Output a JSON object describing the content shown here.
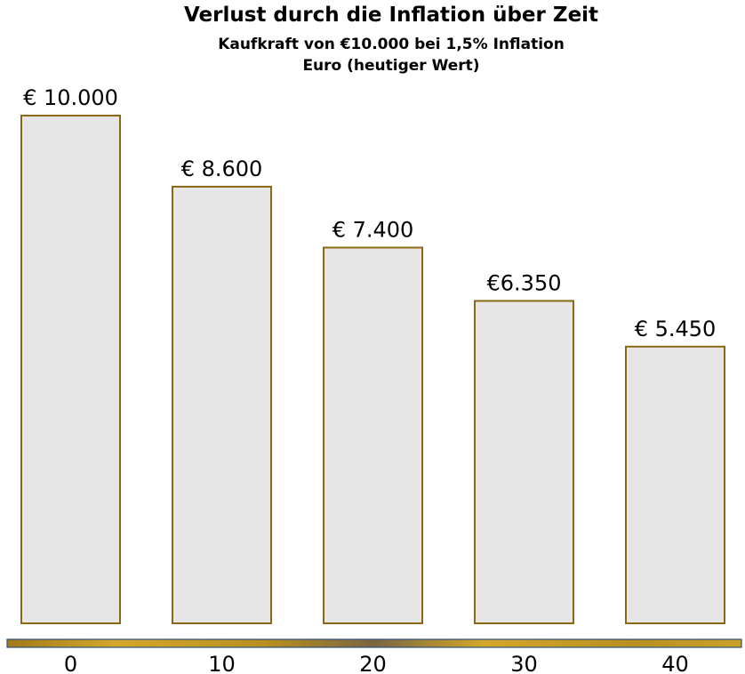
{
  "chart_data": {
    "type": "bar",
    "title": "Verlust durch die Inflation über Zeit",
    "subtitle": "Kaufkraft von €10.000 bei 1,5% Inflation",
    "subtitle2": "Euro (heutiger Wert)",
    "categories": [
      "0",
      "10",
      "20",
      "30",
      "40"
    ],
    "values": [
      10000,
      8600,
      7400,
      6350,
      5450
    ],
    "data_labels": [
      "€ 10.000",
      "€ 8.600",
      "€ 7.400",
      "€6.350",
      "€ 5.450"
    ],
    "ylim": [
      0,
      10000
    ],
    "grid": false,
    "legend": "none",
    "colors": {
      "bar_fill": "#e6e6e6",
      "bar_stroke": "#8b6914",
      "axis_gold": "#c9a227",
      "axis_border": "#2f4f7f"
    }
  }
}
